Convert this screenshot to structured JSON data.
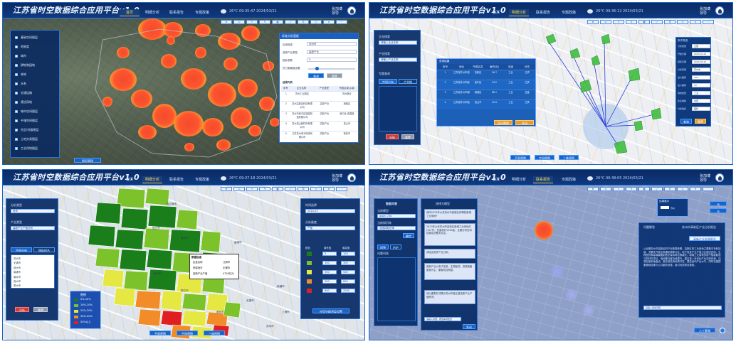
{
  "app": {
    "title": "江苏省时空数据综合应用平台v1.0"
  },
  "nav": [
    "首页",
    "明细分析",
    "联系报告",
    "专题政策"
  ],
  "panels": [
    {
      "active_tab": 0,
      "weather": "26°C  09:35:47  2024/03/21",
      "user": {
        "name": "张加博",
        "role": "领导"
      },
      "sidebar_layers": [
        "基础空间图层",
        "地物类",
        "城市",
        "耕地和园地",
        "林地",
        "水系",
        "交通运输",
        "建设用地",
        "城市空间图层",
        "乡镇空间图层",
        "社区/村级图层",
        "土地交易图层",
        "工业用地图层"
      ],
      "sidebar_button": "图层管理",
      "form": {
        "title": "标准分析面板",
        "rows": [
          "区域选择",
          "选择产业类型",
          "指标参数"
        ],
        "values": [
          "苏州市",
          "高新产业",
          "5"
        ],
        "slider_label": "热力图阈值设置",
        "buttons": [
          "查询",
          "重置"
        ]
      },
      "table": {
        "title": "结果列表",
        "headers": [
          "序号",
          "企业名称",
          "产业类型",
          "所属区域/乡镇"
        ],
        "rows": [
          [
            "1",
            "苏州工业园区",
            "",
            "苏州新区"
          ],
          [
            "2",
            "苏州高新区科技有限公司",
            "高新产业",
            "相城区"
          ],
          [
            "3",
            "苏州市吴中区智能制造有限公司",
            "高新产业",
            "吴中区·甪直镇"
          ],
          [
            "4",
            "苏州昆山新材料有限公司",
            "高新产业",
            "昆山市"
          ],
          [
            "5",
            "江苏苏州电子科技有限公司",
            "高新产业",
            "常熟市"
          ]
        ]
      }
    },
    {
      "active_tab": 1,
      "weather": "26°C  09:36:12  2024/03/21",
      "user": {
        "name": "张加博",
        "role": "领导"
      },
      "left": {
        "labels": [
          "企业搜索",
          "产业搜索",
          "专题查询"
        ],
        "tabs": [
          "空间分布",
          "产业链"
        ],
        "inputs": [
          "请输入企业名称",
          "请输入产业名称"
        ],
        "buttons": [
          "分析",
          "重置"
        ]
      },
      "table": {
        "title": "查询结果",
        "headers": [
          "序号",
          "地址",
          "所属区县",
          "面积(亩)",
          "用途",
          "状态"
        ],
        "rows": [
          [
            "1",
            "江苏省苏州市高新区××路",
            "高新区",
            "56.7",
            "工业",
            "已供"
          ],
          [
            "2",
            "江苏省苏州市吴中区××大道",
            "吴中区",
            "34.2",
            "工业",
            "已供"
          ],
          [
            "3",
            "江苏省苏州市相城区××街道",
            "相城区",
            "88.1",
            "工业",
            "在建"
          ],
          [
            "4",
            "江苏省苏州市昆山市××镇",
            "昆山市",
            "22.9",
            "工业",
            "已供"
          ]
        ],
        "buttons": [
          "导出数据",
          "关闭"
        ]
      },
      "right": {
        "title": "条件筛选",
        "rows": [
          "分析类型",
          "开始日期",
          "结束日期",
          "分析范围",
          "最大面积",
          "最小面积",
          "用地类型",
          "企业规模",
          "分析指标"
        ],
        "values": [
          "全部",
          "2023-01-01",
          "2024-03-21",
          "苏州市",
          "100",
          "10",
          "工业",
          "中型",
          "面积"
        ],
        "buttons": [
          "查询",
          "重置"
        ]
      },
      "bottom_buttons": [
        "平面视图",
        "空间视图",
        "三维视图"
      ]
    },
    {
      "active_tab": 1,
      "weather": "26°C  09:37:18  2024/03/21",
      "user": {
        "name": "张加博",
        "role": "领导"
      },
      "left": {
        "labels": [
          "分析类型",
          "产业类型"
        ],
        "inputs": [
          "地市",
          "高新产业产值分析"
        ],
        "tabs": [
          "空间分布",
          "指标排名"
        ],
        "list": [
          "苏州市",
          "无锡市",
          "常州市",
          "南通市",
          "南京市",
          "扬州市",
          "泰州市"
        ],
        "buttons": [
          "分析",
          "重置"
        ]
      },
      "legend": {
        "title": "图例",
        "items": [
          "0%-10%",
          "10%-20%",
          "20%-30%",
          "30%-50%",
          "50%以上"
        ],
        "colors": [
          "#1a7f1a",
          "#7cc22b",
          "#e5e842",
          "#f28c28",
          "#e02020"
        ]
      },
      "popup": {
        "title": "数据信息",
        "rows": [
          [
            "区县名称",
            "江阴市"
          ],
          [
            "所属地市",
            "无锡市"
          ],
          [
            "高新产业产值",
            "4758亿元"
          ]
        ]
      },
      "right": {
        "labels": [
          "时间选择",
          "分析维度"
        ],
        "values": [
          "2024-03",
          "产值"
        ],
        "headers": [
          "颜色",
          "最低值",
          "最高值"
        ],
        "rows": [
          [
            "0",
            "100"
          ],
          [
            "100",
            "300"
          ],
          [
            "300",
            "500"
          ],
          [
            "500",
            "800"
          ],
          [
            "800",
            "2000"
          ]
        ],
        "button": "应用分级渲染设置"
      },
      "map_labels": [
        "连云港市",
        "宿迁市",
        "淮安市",
        "盐城市",
        "扬州市",
        "泰州市",
        "南京市",
        "镇江市",
        "常州市",
        "无锡市",
        "苏州市",
        "南通市",
        "上海市"
      ],
      "bottom_buttons": [
        "平面视图",
        "空间视图",
        "三维视图"
      ]
    },
    {
      "active_tab": 2,
      "weather": "26°C  09:38:05  2024/03/21",
      "user": {
        "name": "张加博",
        "role": "领导"
      },
      "left": {
        "title": "智能问答",
        "labels": [
          "当前模型",
          "当前知识库"
        ],
        "inputs": [
          "qwen-72b",
          "请选择知识库"
        ],
        "button": "确定",
        "tabs": [
          "问答",
          "历史"
        ],
        "section": "问题列表"
      },
      "mid": {
        "title": "选择大模型",
        "messages": [
          "请问2023年以来苏州市高新区有哪些新增工业用地？",
          "2023年以来苏州市高新区新增工业用地共计27宗，总面积约1356亩，主要分布在科技城及浒墅关片区。",
          "请给出相关产业分析。",
          "高新产业以电子信息、生物医药、高端装备制造为主，集聚效应明显。",
          "请以图表形式展示苏州市各区县高新产业产值情况。"
        ],
        "placeholder": "请输入问题，按回车键发送",
        "send": "发送"
      },
      "popup": {
        "title": "结果展示",
        "rows": [
          [
            "当前位置",
            "苏州"
          ],
          [
            "分析结果",
            ""
          ]
        ]
      },
      "right": {
        "title": "问题解答",
        "subtitle": "苏州市高新区产业分析报告",
        "button": "高新产业发展报告",
        "text": "从近期苏州市高新区的产业数据来看，高新区的工业用地主要集中在科技城、浒墅关开发区和通安镇等片区。电子信息产业产值占比超过四成，生物医药和高端装备制造业保持两位数增长。新增工业用地多用于智能制造与新材料项目，用地集约度持续提升。建议进一步优化产业空间布局，加强存量用地盘活，推动低效用地再开发，提高亩均产出水平，同时完善配套基础设施与公共服务设施，吸引优质项目落地。",
        "input_placeholder": "请输入您的问题"
      },
      "bottom_button": "人工客服"
    }
  ]
}
